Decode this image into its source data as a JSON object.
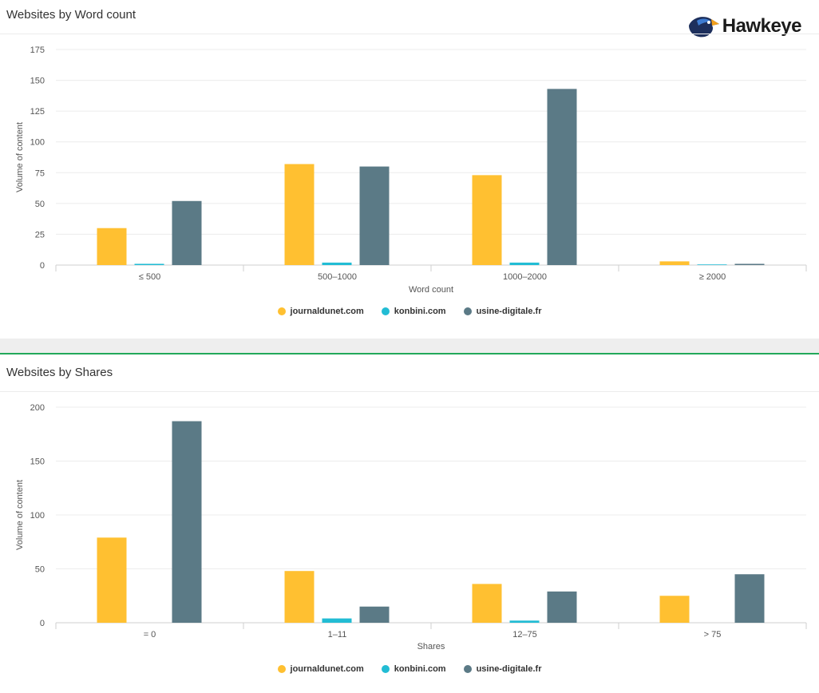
{
  "branding": {
    "logo_text": "Hawkeye"
  },
  "series_colors": [
    "#ffc031",
    "#22bcd4",
    "#5b7a86"
  ],
  "chart_data": [
    {
      "type": "bar",
      "title": "Websites by Word count",
      "xlabel": "Word count",
      "ylabel": "Volume of content",
      "categories": [
        "≤ 500",
        "500–1000",
        "1000–2000",
        "≥ 2000"
      ],
      "ylim": [
        0,
        175
      ],
      "yticks": [
        0,
        25,
        50,
        75,
        100,
        125,
        150,
        175
      ],
      "grid": true,
      "legend_position": "bottom",
      "series": [
        {
          "name": "journaldunet.com",
          "values": [
            30,
            82,
            73,
            3
          ]
        },
        {
          "name": "konbini.com",
          "values": [
            1,
            2,
            2,
            0.5
          ]
        },
        {
          "name": "usine-digitale.fr",
          "values": [
            52,
            80,
            143,
            1
          ]
        }
      ]
    },
    {
      "type": "bar",
      "title": "Websites by Shares",
      "xlabel": "Shares",
      "ylabel": "Volume of content",
      "categories": [
        "= 0",
        "1–11",
        "12–75",
        "> 75"
      ],
      "ylim": [
        0,
        200
      ],
      "yticks": [
        0,
        50,
        100,
        150,
        200
      ],
      "grid": true,
      "legend_position": "bottom",
      "series": [
        {
          "name": "journaldunet.com",
          "values": [
            79,
            48,
            36,
            25
          ]
        },
        {
          "name": "konbini.com",
          "values": [
            0,
            4,
            2,
            0
          ]
        },
        {
          "name": "usine-digitale.fr",
          "values": [
            187,
            15,
            29,
            45
          ]
        }
      ]
    }
  ]
}
